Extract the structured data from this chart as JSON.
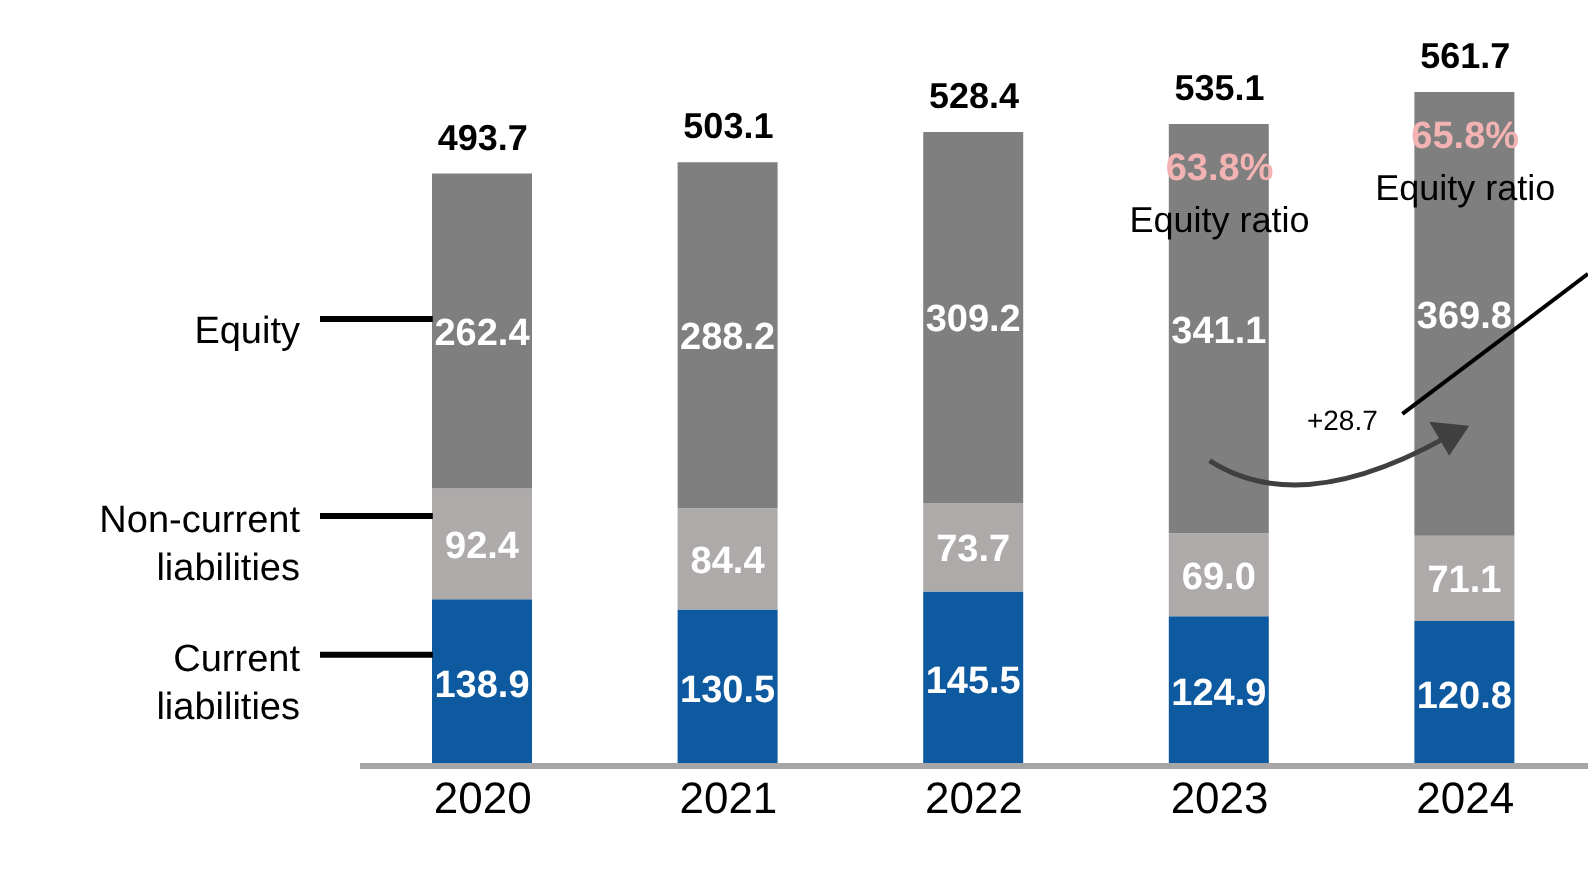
{
  "chart_data": {
    "type": "bar",
    "stacked": true,
    "legend": "left",
    "categories": [
      "2020",
      "2021",
      "2022",
      "2023",
      "2024"
    ],
    "series": [
      {
        "name": "Current liabilities",
        "color": "#0d5aa0",
        "values": [
          138.9,
          130.5,
          145.5,
          124.9,
          120.8
        ],
        "value_labels": [
          "138.9",
          "130.5",
          "145.5",
          "124.9",
          "120.8"
        ]
      },
      {
        "name": "Non-current liabilities",
        "color": "#aeaaaa",
        "values": [
          92.4,
          84.4,
          73.7,
          69.0,
          71.1
        ],
        "value_labels": [
          "92.4",
          "84.4",
          "73.7",
          "69.0",
          "71.1"
        ]
      },
      {
        "name": "Equity",
        "color": "#7f7f7f",
        "values": [
          262.4,
          288.2,
          309.2,
          341.1,
          369.8
        ],
        "value_labels": [
          "262.4",
          "288.2",
          "309.2",
          "341.1",
          "369.8"
        ]
      }
    ],
    "totals": [
      "493.7",
      "503.1",
      "528.4",
      "535.1",
      "561.7"
    ],
    "annotations": [
      "63.8%",
      "Equity ratio",
      "65.8%",
      "Equity ratio",
      "+28.7"
    ]
  }
}
